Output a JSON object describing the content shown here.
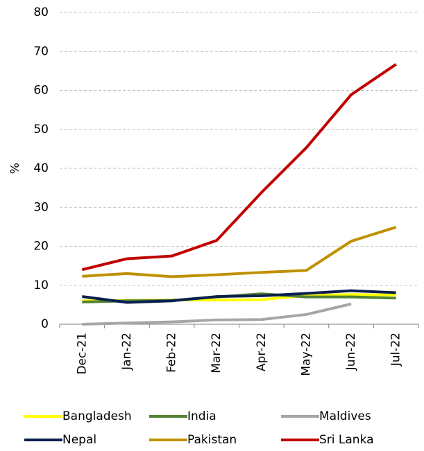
{
  "chart_data": {
    "type": "line",
    "y_label": "%",
    "categories": [
      "Dec-21",
      "Jan-22",
      "Feb-22",
      "Mar-22",
      "Apr-22",
      "May-22",
      "Jun-22",
      "Jul-22"
    ],
    "series": [
      {
        "name": "Bangladesh",
        "color": "#ffff00",
        "values": [
          6.0,
          6.1,
          6.2,
          6.2,
          6.3,
          7.4,
          7.6,
          7.5
        ]
      },
      {
        "name": "India",
        "color": "#548235",
        "values": [
          5.7,
          6.0,
          6.1,
          7.0,
          7.8,
          7.0,
          7.0,
          6.7
        ]
      },
      {
        "name": "Maldives",
        "color": "#a6a6a6",
        "values": [
          0.0,
          0.3,
          0.6,
          1.1,
          1.2,
          2.5,
          5.2,
          null
        ]
      },
      {
        "name": "Nepal",
        "color": "#0b1f4f",
        "values": [
          7.1,
          5.6,
          6.0,
          7.1,
          7.3,
          7.9,
          8.6,
          8.1
        ]
      },
      {
        "name": "Pakistan",
        "color": "#bf9000",
        "values": [
          12.3,
          13.0,
          12.2,
          12.7,
          13.3,
          13.8,
          21.3,
          24.9
        ]
      },
      {
        "name": "Sri Lanka",
        "color": "#c00000",
        "values": [
          14.0,
          16.8,
          17.5,
          21.5,
          33.8,
          45.3,
          58.9,
          66.7
        ]
      }
    ],
    "ylim": [
      0,
      80
    ],
    "yticks": [
      0,
      10,
      20,
      30,
      40,
      50,
      60,
      70,
      80
    ],
    "grid": true,
    "legend": "bottom"
  }
}
